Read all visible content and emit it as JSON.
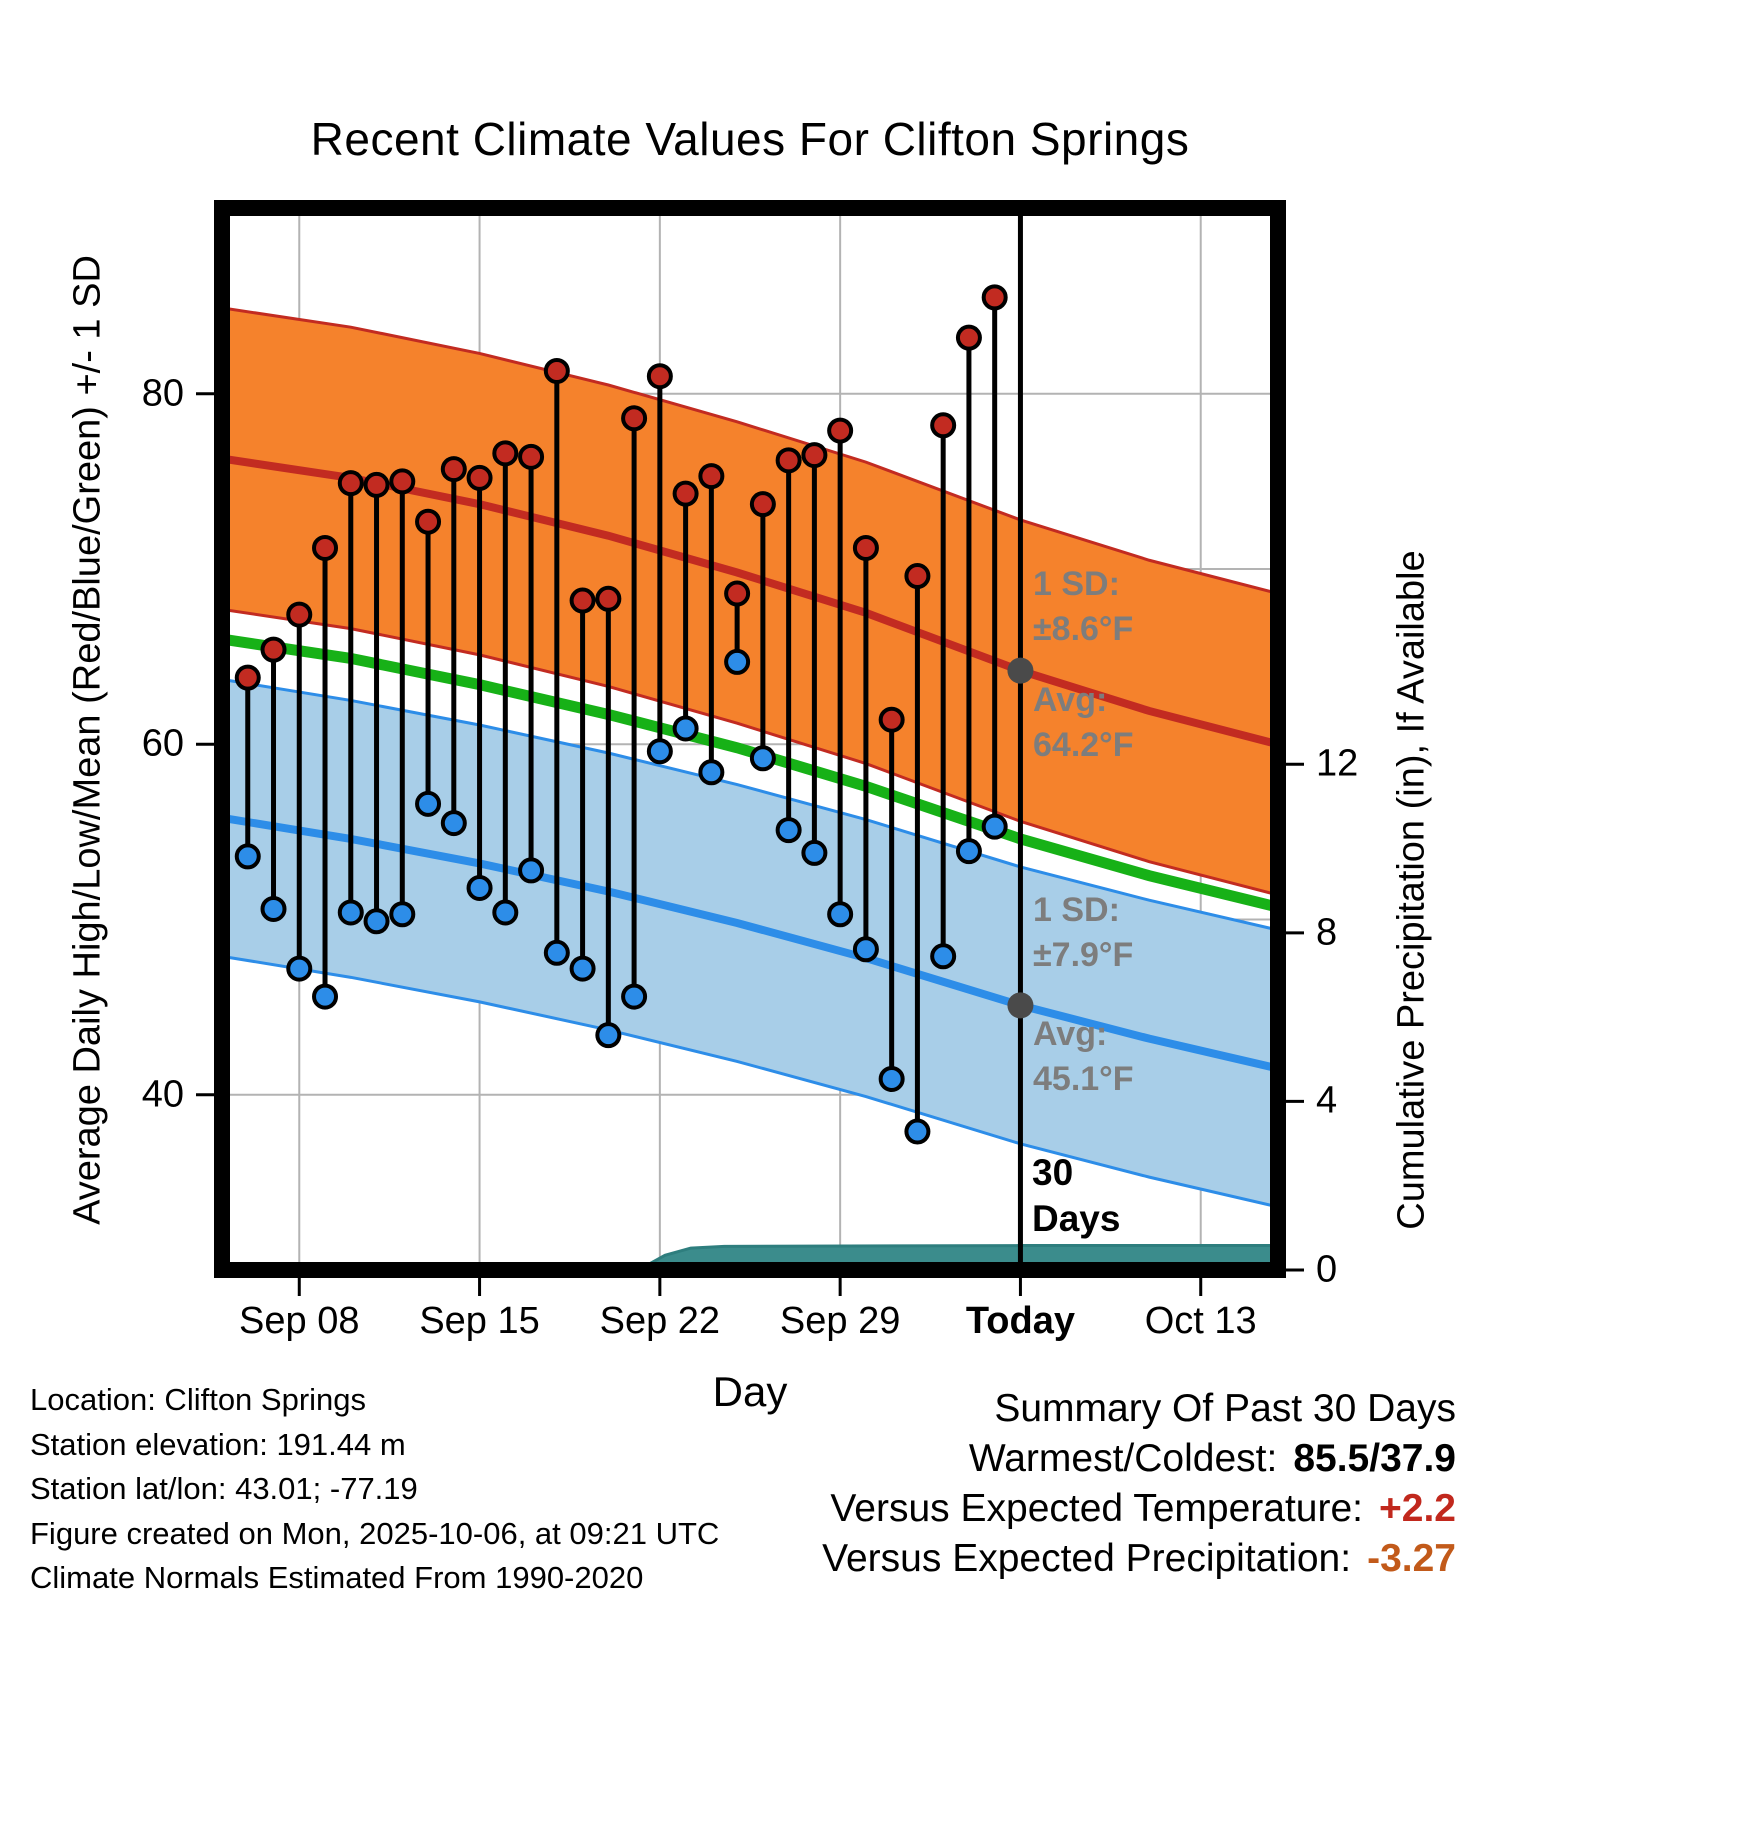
{
  "title": "Recent Climate Values For Clifton Springs",
  "axes": {
    "x_label": "Day",
    "y_left_label": "Average Daily High/Low/Mean (Red/Blue/Green) +/- 1 SD",
    "y_right_label": "Cumulative Precipitation (in), If Available",
    "x_ticks": [
      {
        "label": "Sep 08",
        "day": 3,
        "bold": false
      },
      {
        "label": "Sep 15",
        "day": 10,
        "bold": false
      },
      {
        "label": "Sep 22",
        "day": 17,
        "bold": false
      },
      {
        "label": "Sep 29",
        "day": 24,
        "bold": false
      },
      {
        "label": "Today",
        "day": 31,
        "bold": true
      },
      {
        "label": "Oct 13",
        "day": 38,
        "bold": false
      }
    ],
    "y_left_ticks": [
      {
        "label": "80",
        "value": 80
      },
      {
        "label": "60",
        "value": 60
      },
      {
        "label": "40",
        "value": 40
      }
    ],
    "y_right_ticks": [
      {
        "label": "12",
        "value": 12
      },
      {
        "label": "8",
        "value": 8
      },
      {
        "label": "4",
        "value": 4
      },
      {
        "label": "0",
        "value": 0
      }
    ]
  },
  "annotations": {
    "high_sd": "1 SD:\n±8.6°F",
    "high_avg": "Avg:\n64.2°F",
    "low_sd": "1 SD:\n±7.9°F",
    "low_avg": "Avg:\n45.1°F",
    "days_marker": "30\nDays"
  },
  "footer": {
    "lines": [
      "Location: Clifton Springs",
      "Station elevation: 191.44 m",
      "Station lat/lon: 43.01; -77.19",
      "Figure created on Mon, 2025-10-06, at 09:21 UTC",
      "Climate Normals Estimated From 1990-2020"
    ]
  },
  "summary": {
    "title": "Summary Of Past 30 Days",
    "rows": [
      {
        "label": "Warmest/Coldest:",
        "value": "85.5/37.9",
        "color": "#000000"
      },
      {
        "label": "Versus Expected Temperature:",
        "value": "+2.2",
        "color": "#c1281d"
      },
      {
        "label": "Versus Expected Precipitation:",
        "value": "-3.27",
        "color": "#c25a1a"
      }
    ]
  },
  "colors": {
    "red_line": "#c22b21",
    "orange_band": "#f5822c",
    "blue_line": "#2d8de8",
    "blue_band": "#a8cee8",
    "green_line": "#17b117",
    "teal_fill": "#3b8c8c",
    "teal_edge": "#2e7e7e",
    "grid": "#b3b3b3",
    "annotation_gray": "#7d7d7d",
    "avg_dot_gray": "#4a4a4a",
    "stem_black": "#000000"
  },
  "chart_data": {
    "type": "line",
    "title": "Recent Climate Values For Clifton Springs",
    "xlabel": "Day",
    "ylabel_left": "Average Daily High/Low/Mean (Red/Blue/Green) +/- 1 SD",
    "ylabel_right": "Cumulative Precipitation (in), If Available",
    "x_day0_date": "Sep 05",
    "x_domain_days": [
      0,
      41
    ],
    "temp_axis_range": [
      30,
      90.6
    ],
    "precip_axis_range": [
      0,
      25.2
    ],
    "grid_temp_lines": [
      40,
      50,
      60,
      70,
      80
    ],
    "today_day": 31,
    "daily": {
      "days": [
        1,
        2,
        3,
        4,
        5,
        6,
        7,
        8,
        9,
        10,
        11,
        12,
        13,
        14,
        15,
        16,
        17,
        18,
        19,
        20,
        21,
        22,
        23,
        24,
        25,
        26,
        27,
        28,
        29,
        30
      ],
      "high": [
        63.8,
        65.4,
        67.4,
        71.2,
        74.9,
        74.8,
        75.0,
        72.7,
        75.7,
        75.2,
        76.6,
        76.4,
        81.3,
        68.2,
        68.3,
        78.6,
        81.0,
        74.3,
        75.3,
        68.6,
        73.7,
        76.2,
        76.5,
        77.9,
        71.2,
        61.4,
        69.6,
        78.2,
        83.2,
        85.5
      ],
      "low": [
        53.6,
        50.6,
        47.2,
        45.6,
        50.4,
        49.9,
        50.3,
        56.6,
        55.5,
        51.8,
        50.4,
        52.8,
        48.1,
        47.2,
        43.4,
        45.6,
        59.6,
        60.9,
        58.4,
        64.7,
        59.2,
        55.1,
        53.8,
        50.3,
        48.3,
        40.9,
        37.9,
        47.9,
        53.9,
        55.3
      ]
    },
    "normals": {
      "high_sd": 8.6,
      "low_sd": 7.9,
      "high_mean": [
        [
          0,
          76.3
        ],
        [
          5,
          75.2
        ],
        [
          10,
          73.7
        ],
        [
          15,
          71.9
        ],
        [
          20,
          69.8
        ],
        [
          25,
          67.5
        ],
        [
          31,
          64.2
        ],
        [
          36,
          61.9
        ],
        [
          41,
          60.0
        ]
      ],
      "green_mean": [
        [
          0,
          66.0
        ],
        [
          5,
          64.9
        ],
        [
          10,
          63.4
        ],
        [
          15,
          61.7
        ],
        [
          20,
          59.8
        ],
        [
          25,
          57.6
        ],
        [
          31,
          54.6
        ],
        [
          36,
          52.5
        ],
        [
          41,
          50.7
        ]
      ],
      "low_mean": [
        [
          0,
          55.8
        ],
        [
          5,
          54.6
        ],
        [
          10,
          53.2
        ],
        [
          15,
          51.6
        ],
        [
          20,
          49.8
        ],
        [
          25,
          47.8
        ],
        [
          31,
          45.1
        ],
        [
          36,
          43.2
        ],
        [
          41,
          41.5
        ]
      ]
    },
    "avg_markers": [
      {
        "day": 31,
        "value": 64.2
      },
      {
        "day": 31,
        "value": 45.1
      }
    ],
    "precip_cumulative": [
      [
        15.8,
        0.0
      ],
      [
        16.4,
        0.08
      ],
      [
        17.2,
        0.35
      ],
      [
        18.2,
        0.52
      ],
      [
        19.5,
        0.56
      ],
      [
        31,
        0.58
      ],
      [
        41,
        0.58
      ]
    ]
  }
}
